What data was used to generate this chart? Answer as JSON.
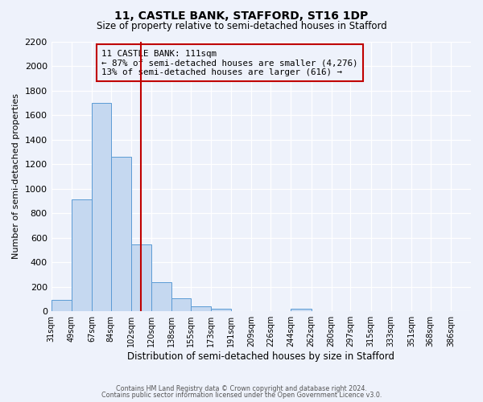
{
  "title": "11, CASTLE BANK, STAFFORD, ST16 1DP",
  "subtitle": "Size of property relative to semi-detached houses in Stafford",
  "xlabel": "Distribution of semi-detached houses by size in Stafford",
  "ylabel": "Number of semi-detached properties",
  "bar_labels": [
    "31sqm",
    "49sqm",
    "67sqm",
    "84sqm",
    "102sqm",
    "120sqm",
    "138sqm",
    "155sqm",
    "173sqm",
    "191sqm",
    "209sqm",
    "226sqm",
    "244sqm",
    "262sqm",
    "280sqm",
    "297sqm",
    "315sqm",
    "333sqm",
    "351sqm",
    "368sqm",
    "386sqm"
  ],
  "bar_values": [
    95,
    910,
    1700,
    1260,
    545,
    235,
    105,
    40,
    20,
    0,
    0,
    0,
    20,
    0,
    0,
    0,
    0,
    0,
    0,
    0,
    0
  ],
  "bar_color": "#c5d8f0",
  "bar_edge_color": "#5b9bd5",
  "ylim": [
    0,
    2200
  ],
  "yticks": [
    0,
    200,
    400,
    600,
    800,
    1000,
    1200,
    1400,
    1600,
    1800,
    2000,
    2200
  ],
  "property_line_x": 111,
  "property_line_color": "#c00000",
  "annotation_title": "11 CASTLE BANK: 111sqm",
  "annotation_line1": "← 87% of semi-detached houses are smaller (4,276)",
  "annotation_line2": "13% of semi-detached houses are larger (616) →",
  "annotation_box_color": "#c00000",
  "bg_color": "#eef2fb",
  "footer1": "Contains HM Land Registry data © Crown copyright and database right 2024.",
  "footer2": "Contains public sector information licensed under the Open Government Licence v3.0.",
  "bin_edges": [
    31,
    49,
    67,
    84,
    102,
    120,
    138,
    155,
    173,
    191,
    209,
    226,
    244,
    262,
    280,
    297,
    315,
    333,
    351,
    368,
    386,
    404
  ]
}
